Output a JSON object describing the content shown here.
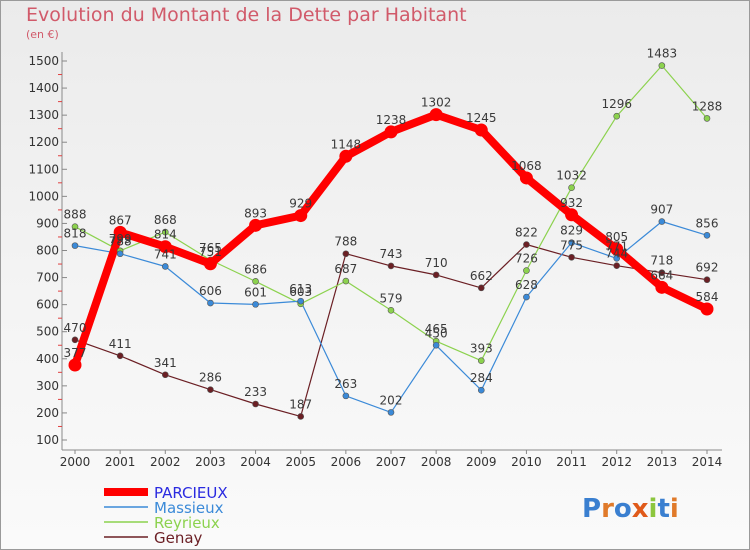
{
  "title": "Evolution du Montant de la Dette par Habitant",
  "subtitle": "(en €)",
  "logo_text": "Proxiti",
  "chart_data": {
    "type": "line",
    "x": [
      "2000",
      "2001",
      "2002",
      "2003",
      "2004",
      "2005",
      "2006",
      "2007",
      "2008",
      "2009",
      "2010",
      "2011",
      "2012",
      "2013",
      "2014"
    ],
    "ylim": [
      100,
      1500
    ],
    "yticks": [
      100,
      200,
      300,
      400,
      500,
      600,
      700,
      800,
      900,
      1000,
      1100,
      1200,
      1300,
      1400,
      1500
    ],
    "grid": false,
    "legend_position": "bottom-left",
    "series": [
      {
        "name": "PARCIEUX",
        "color": "#ff0000",
        "values": [
          377,
          867,
          814,
          751,
          893,
          929,
          1148,
          1238,
          1302,
          1245,
          1068,
          932,
          805,
          664,
          584
        ]
      },
      {
        "name": "Massieux",
        "color": "#3b8ad8",
        "values": [
          818,
          788,
          741,
          606,
          601,
          613,
          263,
          202,
          450,
          284,
          628,
          829,
          771,
          907,
          856
        ]
      },
      {
        "name": "Reyrieux",
        "color": "#8cd24e",
        "values": [
          888,
          799,
          868,
          765,
          686,
          603,
          687,
          579,
          465,
          393,
          726,
          1032,
          1296,
          1483,
          1288
        ]
      },
      {
        "name": "Genay",
        "color": "#6b1f24",
        "values": [
          470,
          411,
          341,
          286,
          233,
          187,
          788,
          743,
          710,
          662,
          822,
          775,
          744,
          718,
          692
        ]
      }
    ]
  }
}
